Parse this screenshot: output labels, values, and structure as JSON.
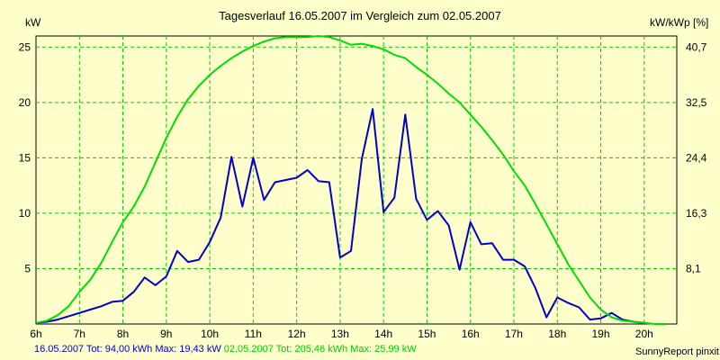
{
  "chart_data": {
    "type": "line",
    "title": "Tagesverlauf 16.05.2007 im Vergleich zum 02.05.2007",
    "ylabel_left": "kW",
    "ylabel_right": "kW/kWp [%]",
    "x_ticks": [
      "6h",
      "7h",
      "8h",
      "9h",
      "10h",
      "11h",
      "12h",
      "13h",
      "14h",
      "15h",
      "16h",
      "17h",
      "18h",
      "19h",
      "20h"
    ],
    "y_ticks_left": [
      "5",
      "10",
      "15",
      "20",
      "25"
    ],
    "y_ticks_right": [
      "8,1",
      "16,3",
      "24,4",
      "32,5",
      "40,7"
    ],
    "xlim": [
      6,
      20.75
    ],
    "ylim": [
      0,
      26
    ],
    "grid": true,
    "series": [
      {
        "name": "16.05.2007",
        "color": "#0000cc",
        "x": [
          6.0,
          6.25,
          6.5,
          6.75,
          7.0,
          7.25,
          7.5,
          7.75,
          8.0,
          8.25,
          8.5,
          8.75,
          9.0,
          9.25,
          9.5,
          9.75,
          10.0,
          10.25,
          10.5,
          10.75,
          11.0,
          11.25,
          11.5,
          11.75,
          12.0,
          12.25,
          12.5,
          12.75,
          13.0,
          13.25,
          13.5,
          13.75,
          14.0,
          14.25,
          14.5,
          14.75,
          15.0,
          15.25,
          15.5,
          15.75,
          16.0,
          16.25,
          16.5,
          16.75,
          17.0,
          17.25,
          17.5,
          17.75,
          18.0,
          18.25,
          18.5,
          18.75,
          19.0,
          19.25,
          19.5,
          19.75,
          20.0
        ],
        "values": [
          0.1,
          0.2,
          0.4,
          0.7,
          1.0,
          1.3,
          1.6,
          2.0,
          2.1,
          2.9,
          4.2,
          3.5,
          4.3,
          6.6,
          5.6,
          5.8,
          7.4,
          9.6,
          15.1,
          10.6,
          15.0,
          11.2,
          12.8,
          13.0,
          13.2,
          13.9,
          12.9,
          12.8,
          6.0,
          6.6,
          14.9,
          19.4,
          10.1,
          11.4,
          18.9,
          11.3,
          9.4,
          10.2,
          8.9,
          4.9,
          9.2,
          7.2,
          7.3,
          5.8,
          5.8,
          5.2,
          3.2,
          0.6,
          2.4,
          1.9,
          1.5,
          0.4,
          0.5,
          1.0,
          0.4,
          0.2,
          0.1
        ]
      },
      {
        "name": "02.05.2007",
        "color": "#00dd00",
        "x": [
          6.0,
          6.25,
          6.5,
          6.75,
          7.0,
          7.25,
          7.5,
          7.75,
          8.0,
          8.25,
          8.5,
          8.75,
          9.0,
          9.25,
          9.5,
          9.75,
          10.0,
          10.25,
          10.5,
          10.75,
          11.0,
          11.25,
          11.5,
          11.75,
          12.0,
          12.25,
          12.5,
          12.75,
          13.0,
          13.25,
          13.5,
          13.75,
          14.0,
          14.25,
          14.5,
          14.75,
          15.0,
          15.25,
          15.5,
          15.75,
          16.0,
          16.25,
          16.5,
          16.75,
          17.0,
          17.25,
          17.5,
          17.75,
          18.0,
          18.25,
          18.5,
          18.75,
          19.0,
          19.25,
          19.5,
          19.75,
          20.0,
          20.25,
          20.5
        ],
        "values": [
          0.1,
          0.3,
          0.8,
          1.6,
          2.9,
          4.0,
          5.5,
          7.4,
          9.2,
          10.6,
          12.4,
          14.6,
          16.8,
          18.7,
          20.3,
          21.5,
          22.5,
          23.3,
          24.0,
          24.6,
          25.1,
          25.5,
          25.8,
          25.9,
          25.9,
          25.9,
          26.0,
          25.9,
          25.6,
          25.2,
          25.3,
          25.1,
          24.8,
          24.3,
          24.0,
          23.2,
          22.5,
          21.7,
          20.8,
          20.0,
          18.9,
          17.8,
          16.6,
          15.3,
          13.8,
          12.5,
          10.8,
          9.0,
          7.2,
          5.4,
          3.9,
          2.4,
          1.3,
          0.6,
          0.3,
          0.2,
          0.1,
          0.0,
          0.0
        ]
      }
    ]
  },
  "footer": {
    "series1_summary": "16.05.2007 Tot: 94,00 kWh Max: 19,43 kW",
    "series2_summary": "02.05.2007 Tot: 205,46 kWh Max: 25,99 kW",
    "credit": "SunnyReport pinxit"
  }
}
